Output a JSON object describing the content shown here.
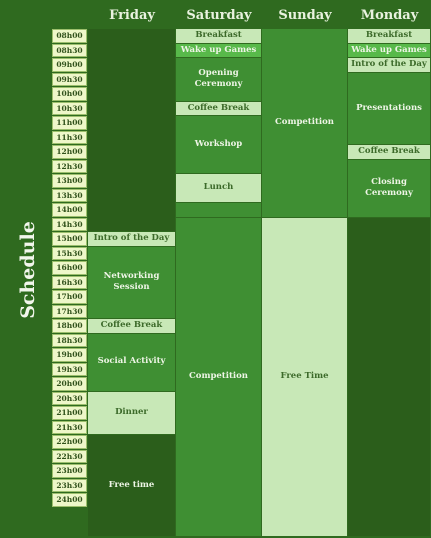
{
  "title": "Schedule",
  "days": [
    "Friday",
    "Saturday",
    "Sunday",
    "Monday"
  ],
  "times": [
    "08h00",
    "08h30",
    "09h00",
    "09h30",
    "10h00",
    "10h30",
    "11h00",
    "11h30",
    "12h00",
    "12h30",
    "13h00",
    "13h30",
    "14h00",
    "14h30",
    "15h00",
    "15h30",
    "16h00",
    "16h30",
    "17h00",
    "17h30",
    "18h00",
    "18h30",
    "19h00",
    "19h30",
    "20h00",
    "20h30",
    "21h00",
    "21h30",
    "22h00",
    "22h30",
    "23h00",
    "23h30",
    "24h00"
  ],
  "colors": {
    "background": "#2f6a1f",
    "dark": "#2b5e1b",
    "mid": "#3f8f33",
    "light": "#c8e8b7",
    "bright": "#58b94a",
    "text_on_light": "#3c6a2a",
    "text_on_dark": "#eef5e6"
  },
  "events": [
    {
      "day": 0,
      "start": 0,
      "end": 14,
      "label": "",
      "tone": "dark"
    },
    {
      "day": 0,
      "start": 14,
      "end": 15,
      "label": "Intro of the Day",
      "tone": "light"
    },
    {
      "day": 0,
      "start": 15,
      "end": 20,
      "label": "Networking Session",
      "tone": "mid"
    },
    {
      "day": 0,
      "start": 20,
      "end": 21,
      "label": "Coffee Break",
      "tone": "light"
    },
    {
      "day": 0,
      "start": 21,
      "end": 25,
      "label": "Social Activity",
      "tone": "mid"
    },
    {
      "day": 0,
      "start": 25,
      "end": 28,
      "label": "Dinner",
      "tone": "light"
    },
    {
      "day": 0,
      "start": 28,
      "end": 35,
      "label": "Free time",
      "tone": "dark"
    },
    {
      "day": 1,
      "start": 0,
      "end": 1,
      "label": "Breakfast",
      "tone": "light"
    },
    {
      "day": 1,
      "start": 1,
      "end": 2,
      "label": "Wake up Games",
      "tone": "bright"
    },
    {
      "day": 1,
      "start": 2,
      "end": 5,
      "label": "Opening Ceremony",
      "tone": "mid"
    },
    {
      "day": 1,
      "start": 5,
      "end": 6,
      "label": "Coffee Break",
      "tone": "light"
    },
    {
      "day": 1,
      "start": 6,
      "end": 10,
      "label": "Workshop",
      "tone": "mid"
    },
    {
      "day": 1,
      "start": 10,
      "end": 12,
      "label": "Lunch",
      "tone": "light"
    },
    {
      "day": 1,
      "start": 12,
      "end": 13,
      "label": "",
      "tone": "mid"
    },
    {
      "day": 1,
      "start": 13,
      "end": 35,
      "label": "Competition",
      "tone": "mid"
    },
    {
      "day": 2,
      "start": 0,
      "end": 13,
      "label": "Competition",
      "tone": "mid"
    },
    {
      "day": 2,
      "start": 13,
      "end": 35,
      "label": "Free Time",
      "tone": "light"
    },
    {
      "day": 3,
      "start": 0,
      "end": 1,
      "label": "Breakfast",
      "tone": "light"
    },
    {
      "day": 3,
      "start": 1,
      "end": 2,
      "label": "Wake up Games",
      "tone": "bright"
    },
    {
      "day": 3,
      "start": 2,
      "end": 3,
      "label": "Intro of the Day",
      "tone": "light"
    },
    {
      "day": 3,
      "start": 3,
      "end": 8,
      "label": "Presentations",
      "tone": "mid"
    },
    {
      "day": 3,
      "start": 8,
      "end": 9,
      "label": "Coffee Break",
      "tone": "light"
    },
    {
      "day": 3,
      "start": 9,
      "end": 13,
      "label": "Closing Ceremony",
      "tone": "mid"
    },
    {
      "day": 3,
      "start": 13,
      "end": 35,
      "label": "",
      "tone": "dark"
    }
  ]
}
